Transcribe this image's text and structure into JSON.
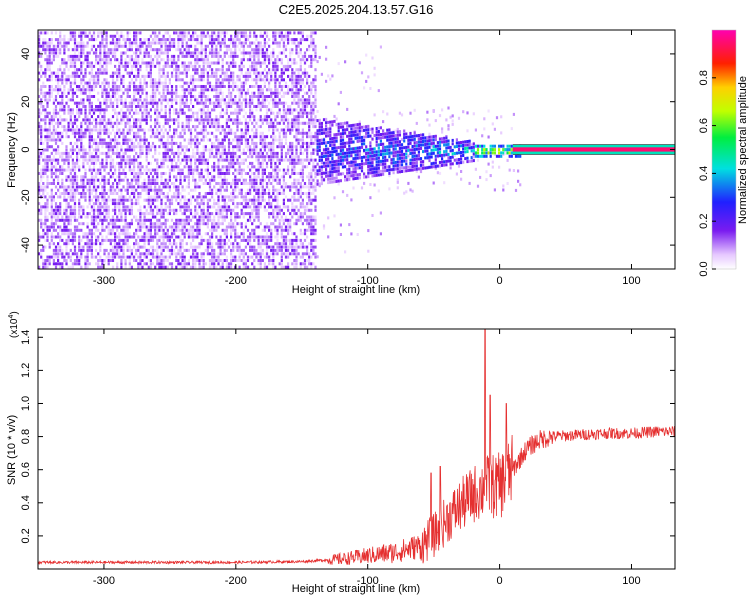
{
  "title": "C2E5.2025.204.13.57.G16",
  "chart_data": [
    {
      "type": "heatmap",
      "title": "C2E5.2025.204.13.57.G16",
      "xlabel": "Height of straight line (km)",
      "ylabel": "Frequency (Hz)",
      "xlim": [
        -350,
        133
      ],
      "ylim": [
        -50,
        50
      ],
      "xticks": [
        -300,
        -200,
        -100,
        0,
        100
      ],
      "xtick_labels": [
        "-300",
        "-200",
        "-100",
        "0",
        "100"
      ],
      "yticks": [
        -40,
        -20,
        0,
        20,
        40
      ],
      "ytick_labels": [
        "-40",
        "-20",
        "0",
        "20",
        "40"
      ],
      "colorbar": {
        "label": "Normalized spectral amplitude",
        "range": [
          0,
          1
        ],
        "ticks": [
          0.0,
          0.2,
          0.4,
          0.6,
          0.8
        ],
        "tick_labels": [
          "0.0",
          "0.2",
          "0.4",
          "0.6",
          "0.8"
        ],
        "colormap": "rainbow (white-violet-blue-cyan-green-yellow-red-magenta)"
      },
      "regions": [
        {
          "x_range": [
            -350,
            -140
          ],
          "description": "broadband noise",
          "amplitude_range": [
            0.02,
            0.15
          ],
          "freq_halfwidth": 50
        },
        {
          "x_range": [
            -140,
            -20
          ],
          "description": "signal emerging, narrowing band",
          "amplitude_range": [
            0.1,
            0.5
          ],
          "freq_halfwidth_start": 12,
          "freq_halfwidth_end": 3
        },
        {
          "x_range": [
            -20,
            15
          ],
          "description": "narrow band near 0 Hz",
          "amplitude_range": [
            0.5,
            0.85
          ],
          "freq_halfwidth": 1.5
        },
        {
          "x_range": [
            15,
            133
          ],
          "description": "steady tone at 0 Hz",
          "amplitude": 0.97,
          "frequency": 0
        }
      ],
      "grid": false
    },
    {
      "type": "line",
      "xlabel": "Height of straight line (km)",
      "ylabel": "SNR (10 * v/v)",
      "yscale_label": "(x10",
      "yscale_exp": "4",
      "yscale_close": ")",
      "xlim": [
        -350,
        133
      ],
      "ylim": [
        0,
        1.45
      ],
      "xticks": [
        -300,
        -200,
        -100,
        0,
        100
      ],
      "xtick_labels": [
        "-300",
        "-200",
        "-100",
        "0",
        "100"
      ],
      "yticks": [
        0.2,
        0.4,
        0.6,
        0.8,
        1.0,
        1.2,
        1.4
      ],
      "ytick_labels": [
        "0.2",
        "0.4",
        "0.6",
        "0.8",
        "1.0",
        "1.2",
        "1.4"
      ],
      "series_color": "#e53030",
      "x": [
        -350,
        -300,
        -250,
        -200,
        -150,
        -120,
        -100,
        -80,
        -60,
        -50,
        -40,
        -30,
        -20,
        -10,
        0,
        10,
        20,
        30,
        40,
        60,
        80,
        100,
        120,
        133
      ],
      "values": [
        0.04,
        0.04,
        0.04,
        0.04,
        0.045,
        0.06,
        0.08,
        0.1,
        0.14,
        0.2,
        0.3,
        0.38,
        0.45,
        0.5,
        0.5,
        0.6,
        0.72,
        0.78,
        0.8,
        0.81,
        0.82,
        0.82,
        0.83,
        0.83
      ],
      "spikes": [
        {
          "x": -11,
          "value": 1.45
        },
        {
          "x": -7,
          "value": 1.05
        },
        {
          "x": 5,
          "value": 1.0
        },
        {
          "x": -45,
          "value": 0.62
        },
        {
          "x": -52,
          "value": 0.58
        }
      ],
      "grid": false
    }
  ]
}
